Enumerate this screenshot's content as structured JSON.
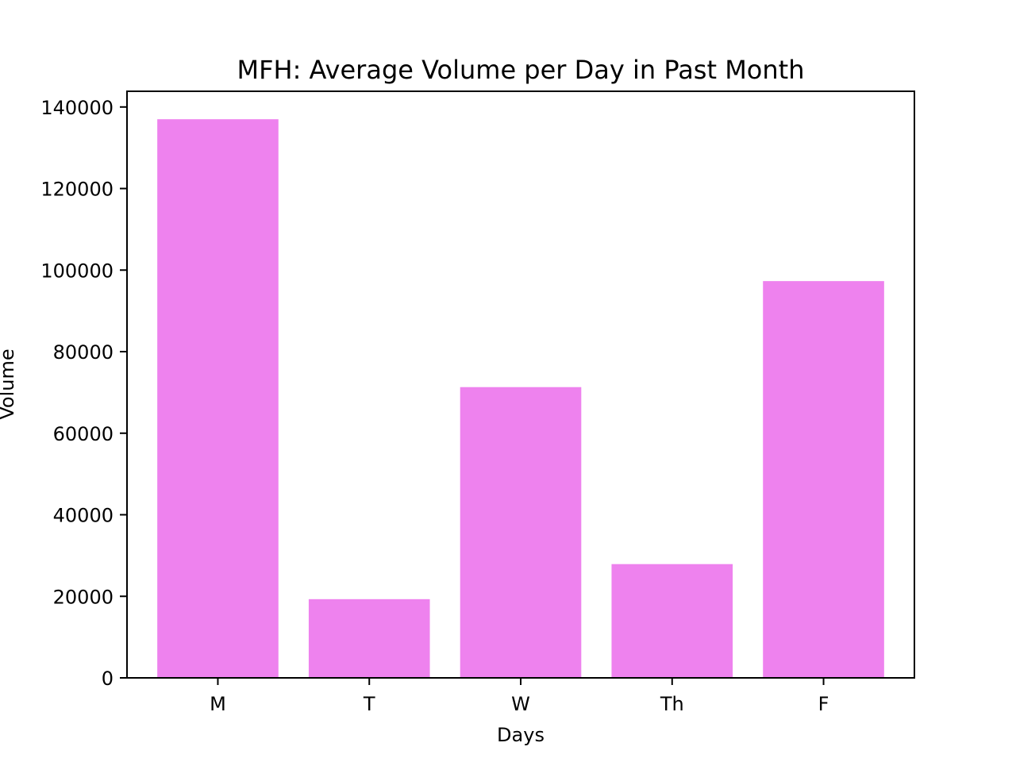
{
  "chart_data": {
    "type": "bar",
    "title": "MFH: Average Volume per Day in Past Month",
    "xlabel": "Days",
    "ylabel": "Volume",
    "categories": [
      "M",
      "T",
      "W",
      "Th",
      "F"
    ],
    "values": [
      137000,
      19300,
      71300,
      27900,
      97300
    ],
    "ylim": [
      0,
      143850
    ],
    "yticks": [
      0,
      20000,
      40000,
      60000,
      80000,
      100000,
      120000,
      140000
    ],
    "bar_color": "#ee82ee",
    "grid": false,
    "legend": "none"
  }
}
